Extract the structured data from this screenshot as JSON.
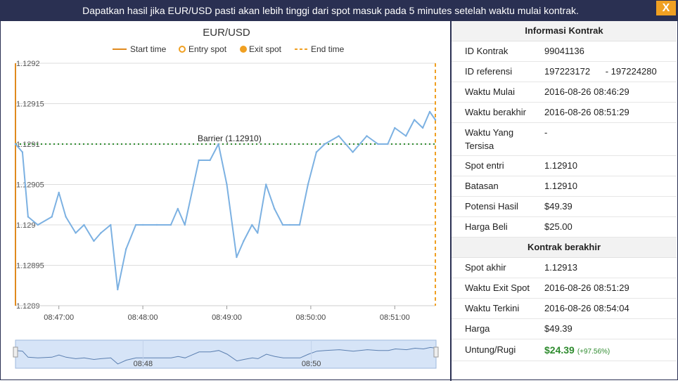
{
  "header": {
    "title": "Dapatkan hasil jika EUR/USD pasti akan lebih tinggi dari spot masuk pada 5 minutes setelah waktu mulai kontrak.",
    "close_label": "X"
  },
  "chart": {
    "title": "EUR/USD",
    "legend": [
      "Start time",
      "Entry spot",
      "Exit spot",
      "End time"
    ],
    "y_ticks": [
      "1.1292",
      "1.12915",
      "1.1291",
      "1.12905",
      "1.129",
      "1.12895",
      "1.1289"
    ],
    "x_ticks": [
      "08:47:00",
      "08:48:00",
      "08:49:00",
      "08:50:00",
      "08:51:00"
    ],
    "barrier_label": "Barrier (1.12910)",
    "navigator_ticks": [
      "08:48",
      "08:50"
    ]
  },
  "chart_data": {
    "type": "line",
    "title": "EUR/USD",
    "x_range": [
      "08:46:29",
      "08:51:29"
    ],
    "ylim": [
      1.1289,
      1.1292
    ],
    "barrier": 1.1291,
    "start_time": "08:46:29",
    "end_time": "08:51:29",
    "series": [
      {
        "times": [
          "08:46:29",
          "08:46:34",
          "08:46:38",
          "08:46:45",
          "08:46:55",
          "08:47:00",
          "08:47:05",
          "08:47:12",
          "08:47:18",
          "08:47:25",
          "08:47:30",
          "08:47:37",
          "08:47:42",
          "08:47:48",
          "08:47:55",
          "08:48:00",
          "08:48:10",
          "08:48:20",
          "08:48:25",
          "08:48:30",
          "08:48:40",
          "08:48:48",
          "08:48:54",
          "08:49:00",
          "08:49:07",
          "08:49:12",
          "08:49:18",
          "08:49:22",
          "08:49:28",
          "08:49:34",
          "08:49:40",
          "08:49:45",
          "08:49:52",
          "08:49:58",
          "08:50:04",
          "08:50:10",
          "08:50:20",
          "08:50:30",
          "08:50:40",
          "08:50:48",
          "08:50:55",
          "08:51:00",
          "08:51:08",
          "08:51:14",
          "08:51:20",
          "08:51:25",
          "08:51:29"
        ],
        "values": [
          1.1291,
          1.12909,
          1.12901,
          1.129,
          1.12901,
          1.12904,
          1.12901,
          1.12899,
          1.129,
          1.12898,
          1.12899,
          1.129,
          1.12892,
          1.12897,
          1.129,
          1.129,
          1.129,
          1.129,
          1.12902,
          1.129,
          1.12908,
          1.12908,
          1.1291,
          1.12905,
          1.12896,
          1.12898,
          1.129,
          1.12899,
          1.12905,
          1.12902,
          1.129,
          1.129,
          1.129,
          1.12905,
          1.12909,
          1.1291,
          1.12911,
          1.12909,
          1.12911,
          1.1291,
          1.1291,
          1.12912,
          1.12911,
          1.12913,
          1.12912,
          1.12914,
          1.12913
        ]
      }
    ]
  },
  "panel": {
    "section1_title": "Informasi Kontrak",
    "rows1": [
      {
        "label": "ID Kontrak",
        "value": "99041136"
      },
      {
        "label": "ID referensi",
        "value": "197223172      - 197224280"
      },
      {
        "label": "Waktu Mulai",
        "value": "2016-08-26 08:46:29"
      },
      {
        "label": "Waktu berakhir",
        "value": "2016-08-26 08:51:29"
      },
      {
        "label": "Waktu Yang Tersisa",
        "value": "-"
      },
      {
        "label": "Spot entri",
        "value": "1.12910"
      },
      {
        "label": "Batasan",
        "value": "1.12910"
      },
      {
        "label": "Potensi Hasil",
        "value": "$49.39"
      },
      {
        "label": "Harga Beli",
        "value": "$25.00"
      }
    ],
    "section2_title": "Kontrak berakhir",
    "rows2": [
      {
        "label": "Spot akhir",
        "value": "1.12913"
      },
      {
        "label": "Waktu Exit Spot",
        "value": "2016-08-26 08:51:29"
      },
      {
        "label": "Waktu Terkini",
        "value": "2016-08-26 08:54:04"
      },
      {
        "label": "Harga",
        "value": "$49.39"
      }
    ],
    "profit": {
      "label": "Untung/Rugi",
      "value": "$24.39",
      "percent": "(+97.56%)"
    }
  },
  "colors": {
    "header_bg": "#2a3052",
    "accent": "#f0a022",
    "line": "#7cb1e2",
    "barrier": "#2e8b2e",
    "profit": "#2e8b2e"
  }
}
